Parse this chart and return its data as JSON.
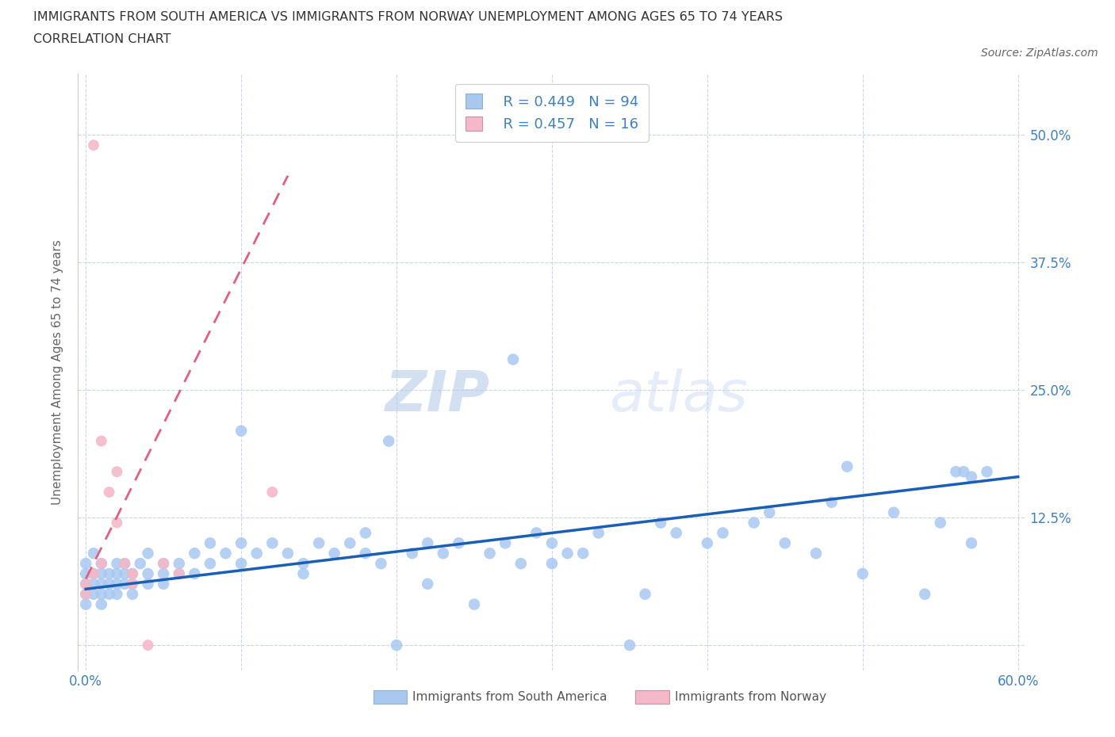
{
  "title_line1": "IMMIGRANTS FROM SOUTH AMERICA VS IMMIGRANTS FROM NORWAY UNEMPLOYMENT AMONG AGES 65 TO 74 YEARS",
  "title_line2": "CORRELATION CHART",
  "source": "Source: ZipAtlas.com",
  "ylabel": "Unemployment Among Ages 65 to 74 years",
  "xlim": [
    -0.005,
    0.605
  ],
  "ylim": [
    -0.025,
    0.56
  ],
  "xtick_positions": [
    0.0,
    0.1,
    0.2,
    0.3,
    0.4,
    0.5,
    0.6
  ],
  "xticklabels": [
    "0.0%",
    "",
    "",
    "",
    "",
    "",
    "60.0%"
  ],
  "ytick_positions": [
    0.0,
    0.125,
    0.25,
    0.375,
    0.5
  ],
  "ytick_labels": [
    "",
    "12.5%",
    "25.0%",
    "37.5%",
    "50.0%"
  ],
  "legend_r_blue": "R = 0.449",
  "legend_n_blue": "N = 94",
  "legend_r_pink": "R = 0.457",
  "legend_n_pink": "N = 16",
  "blue_color": "#a8c8f0",
  "blue_line_color": "#1a5fb4",
  "pink_color": "#f4b8c8",
  "pink_line_color": "#e06080",
  "grid_color": "#c8d8e8",
  "label_color": "#4080c0",
  "watermark_zip": "ZIP",
  "watermark_atlas": "atlas",
  "blue_scatter_x": [
    0.0,
    0.0,
    0.0,
    0.0,
    0.0,
    0.005,
    0.005,
    0.005,
    0.005,
    0.01,
    0.01,
    0.01,
    0.01,
    0.01,
    0.015,
    0.015,
    0.015,
    0.02,
    0.02,
    0.02,
    0.02,
    0.025,
    0.025,
    0.025,
    0.03,
    0.03,
    0.03,
    0.035,
    0.04,
    0.04,
    0.04,
    0.05,
    0.05,
    0.05,
    0.06,
    0.06,
    0.07,
    0.07,
    0.08,
    0.08,
    0.09,
    0.1,
    0.1,
    0.11,
    0.12,
    0.13,
    0.14,
    0.15,
    0.16,
    0.17,
    0.18,
    0.19,
    0.2,
    0.21,
    0.22,
    0.23,
    0.24,
    0.25,
    0.26,
    0.27,
    0.28,
    0.29,
    0.3,
    0.31,
    0.32,
    0.33,
    0.35,
    0.36,
    0.37,
    0.38,
    0.4,
    0.41,
    0.43,
    0.44,
    0.45,
    0.47,
    0.48,
    0.5,
    0.52,
    0.54,
    0.55,
    0.56,
    0.57,
    0.58,
    0.275,
    0.195,
    0.49,
    0.565,
    0.57,
    0.3,
    0.22,
    0.18,
    0.14,
    0.1
  ],
  "blue_scatter_y": [
    0.06,
    0.05,
    0.07,
    0.08,
    0.04,
    0.06,
    0.07,
    0.05,
    0.09,
    0.07,
    0.06,
    0.05,
    0.08,
    0.04,
    0.06,
    0.07,
    0.05,
    0.06,
    0.07,
    0.08,
    0.05,
    0.07,
    0.06,
    0.08,
    0.06,
    0.07,
    0.05,
    0.08,
    0.06,
    0.07,
    0.09,
    0.07,
    0.08,
    0.06,
    0.08,
    0.07,
    0.09,
    0.07,
    0.1,
    0.08,
    0.09,
    0.1,
    0.08,
    0.09,
    0.1,
    0.09,
    0.08,
    0.1,
    0.09,
    0.1,
    0.11,
    0.08,
    0.0,
    0.09,
    0.1,
    0.09,
    0.1,
    0.04,
    0.09,
    0.1,
    0.08,
    0.11,
    0.1,
    0.09,
    0.09,
    0.11,
    0.0,
    0.05,
    0.12,
    0.11,
    0.1,
    0.11,
    0.12,
    0.13,
    0.1,
    0.09,
    0.14,
    0.07,
    0.13,
    0.05,
    0.12,
    0.17,
    0.1,
    0.17,
    0.28,
    0.2,
    0.175,
    0.17,
    0.165,
    0.08,
    0.06,
    0.09,
    0.07,
    0.21
  ],
  "pink_scatter_x": [
    0.005,
    0.0,
    0.0,
    0.005,
    0.01,
    0.01,
    0.015,
    0.02,
    0.02,
    0.025,
    0.03,
    0.03,
    0.04,
    0.05,
    0.12,
    0.06
  ],
  "pink_scatter_y": [
    0.49,
    0.06,
    0.05,
    0.07,
    0.2,
    0.08,
    0.15,
    0.17,
    0.12,
    0.08,
    0.07,
    0.06,
    0.0,
    0.08,
    0.15,
    0.07
  ],
  "blue_trend_x0": 0.0,
  "blue_trend_x1": 0.6,
  "blue_trend_y0": 0.055,
  "blue_trend_y1": 0.165,
  "pink_trend_x0": 0.0,
  "pink_trend_x1": 0.13,
  "pink_trend_y0": 0.065,
  "pink_trend_y1": 0.46
}
